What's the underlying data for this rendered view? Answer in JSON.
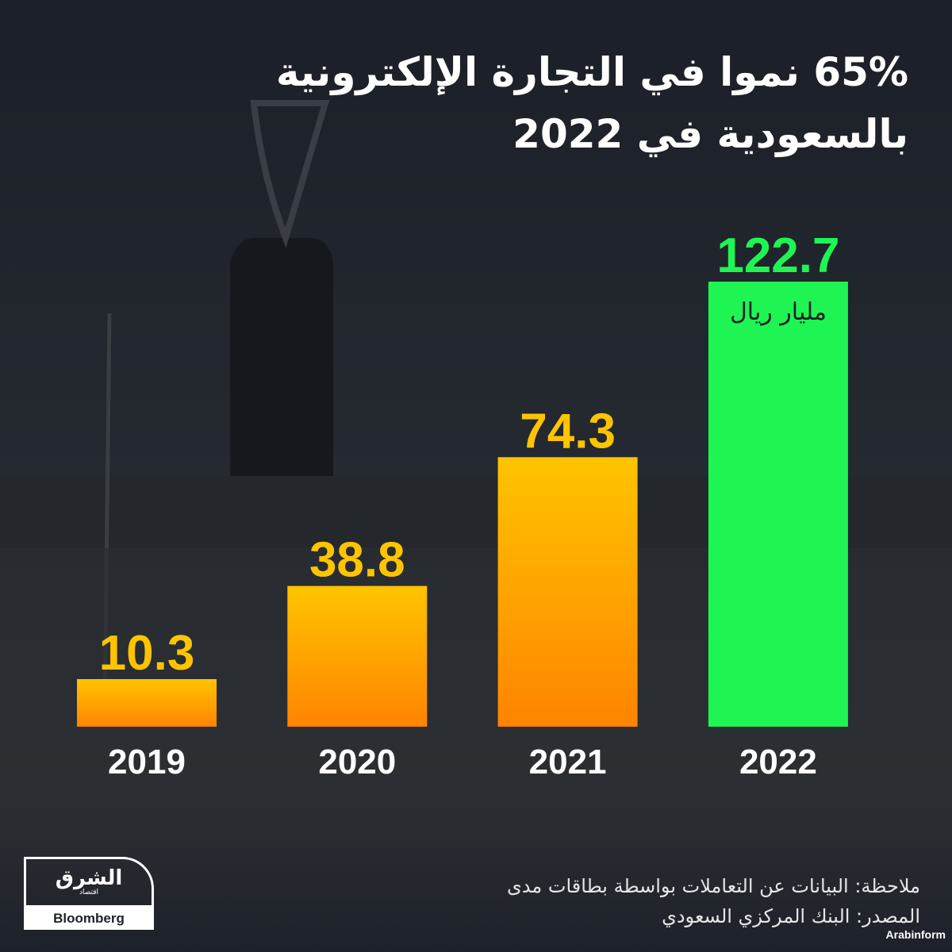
{
  "title": "65% نموا في التجارة الإلكترونية بالسعودية في 2022",
  "chart_data": {
    "type": "bar",
    "title": "65% نموا في التجارة الإلكترونية بالسعودية في 2022",
    "categories": [
      "2019",
      "2020",
      "2021",
      "2022"
    ],
    "values": [
      10.3,
      38.8,
      74.3,
      122.7
    ],
    "value_labels": [
      "10.3",
      "38.8",
      "74.3",
      "122.7"
    ],
    "unit": "مليار ريال",
    "xlabel": "",
    "ylabel": "",
    "ylim": [
      0,
      122.7
    ],
    "grid": false,
    "colors": {
      "normal_top": "#ffc400",
      "normal_bottom": "#ff8400",
      "highlight": "#1ef552"
    },
    "highlight_index": 3
  },
  "notes": {
    "note": "ملاحظة: البيانات عن التعاملات بواسطة بطاقات مدى",
    "source": "المصدر:  البنك المركزي السعودي"
  },
  "logo": {
    "arabic": "الشرق",
    "arabic_sub": "اقتصاد",
    "with": "مع",
    "brand": "Bloomberg"
  },
  "credit": "Arabinform"
}
